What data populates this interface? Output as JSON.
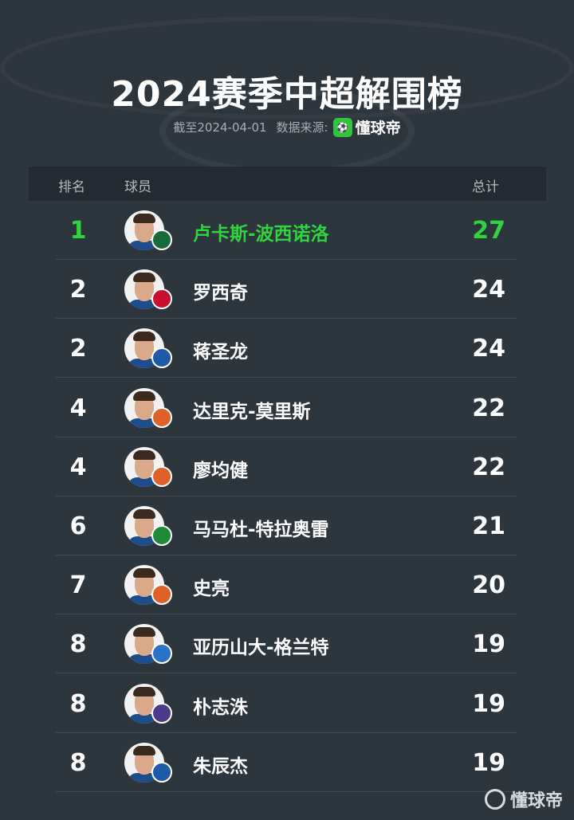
{
  "title": "2024赛季中超解围榜",
  "subtitle": {
    "date_text": "截至2024-04-01",
    "source_label": "数据来源:",
    "brand": "懂球帝"
  },
  "table": {
    "headers": {
      "rank": "排名",
      "player": "球员",
      "total": "总计"
    },
    "rows": [
      {
        "rank": "1",
        "name": "卢卡斯-波西诺洛",
        "total": "27",
        "badge_color": "#1b6b3a",
        "highlight": true
      },
      {
        "rank": "2",
        "name": "罗西奇",
        "total": "24",
        "badge_color": "#c8102e"
      },
      {
        "rank": "2",
        "name": "蒋圣龙",
        "total": "24",
        "badge_color": "#1e5aa8"
      },
      {
        "rank": "4",
        "name": "达里克-莫里斯",
        "total": "22",
        "badge_color": "#e0602a"
      },
      {
        "rank": "4",
        "name": "廖均健",
        "total": "22",
        "badge_color": "#e0602a"
      },
      {
        "rank": "6",
        "name": "马马杜-特拉奥雷",
        "total": "21",
        "badge_color": "#1f8a3a"
      },
      {
        "rank": "7",
        "name": "史亮",
        "total": "20",
        "badge_color": "#e0602a"
      },
      {
        "rank": "8",
        "name": "亚历山大-格兰特",
        "total": "19",
        "badge_color": "#2a72c8"
      },
      {
        "rank": "8",
        "name": "朴志洙",
        "total": "19",
        "badge_color": "#4b3a8c"
      },
      {
        "rank": "8",
        "name": "朱辰杰",
        "total": "19",
        "badge_color": "#1e5aa8"
      }
    ]
  },
  "footer": {
    "brand": "懂球帝"
  },
  "colors": {
    "background": "#2d353d",
    "highlight": "#2fd43f",
    "header_bg": "#232a31"
  }
}
